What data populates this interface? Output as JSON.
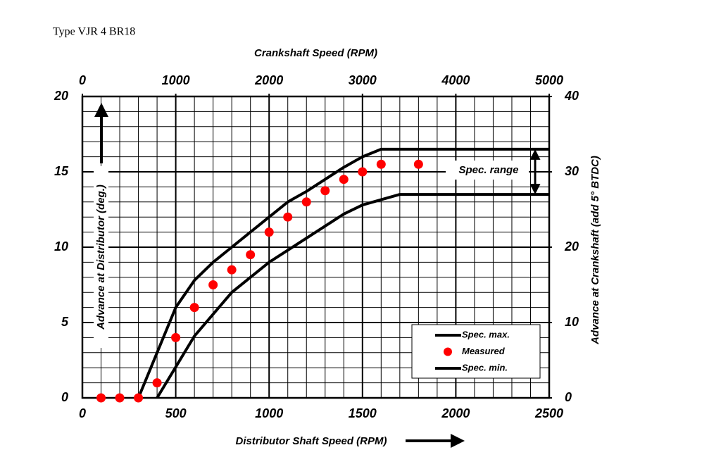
{
  "chart_data": {
    "type": "line",
    "title": "Type VJR 4 BR18",
    "x_label": "Distributor Shaft Speed (RPM)",
    "x2_label": "Crankshaft Speed (RPM)",
    "y_label": "Advance at Distributor (deg.)",
    "y2_label": "Advance at Crankshaft (add 5° BTDC)",
    "annotation": "Spec. range",
    "xlim": [
      0,
      2500
    ],
    "xticks": [
      0,
      500,
      1000,
      1500,
      2000,
      2500
    ],
    "x2lim": [
      0,
      5000
    ],
    "x2ticks": [
      0,
      1000,
      2000,
      3000,
      4000,
      5000
    ],
    "ylim": [
      0,
      20
    ],
    "yticks": [
      0,
      5,
      10,
      15,
      20
    ],
    "y2lim": [
      0,
      40
    ],
    "y2ticks": [
      0,
      10,
      20,
      30,
      40
    ],
    "grid": true,
    "legend": "lower right",
    "series": [
      {
        "name": "Spec. max.",
        "color": "#000000",
        "style": "line",
        "x": [
          300,
          500,
          600,
          700,
          800,
          900,
          1000,
          1100,
          1200,
          1300,
          1400,
          1500,
          1600,
          2500
        ],
        "values": [
          0,
          6,
          7.8,
          9,
          10,
          11,
          12,
          13,
          13.7,
          14.5,
          15.3,
          16,
          16.5,
          16.5
        ]
      },
      {
        "name": "Measured",
        "color": "#ff0000",
        "style": "markers",
        "x": [
          100,
          200,
          300,
          400,
          500,
          600,
          700,
          800,
          900,
          1000,
          1100,
          1200,
          1300,
          1400,
          1500,
          1600,
          1800
        ],
        "values": [
          0,
          0,
          0,
          1,
          4,
          6,
          7.5,
          8.5,
          9.5,
          11,
          12,
          13,
          13.75,
          14.5,
          15,
          15.5,
          15.5
        ]
      },
      {
        "name": "Spec. min.",
        "color": "#000000",
        "style": "line",
        "x": [
          400,
          600,
          800,
          1000,
          1200,
          1400,
          1500,
          1700,
          2500
        ],
        "values": [
          0,
          4.1,
          7,
          9,
          10.6,
          12.2,
          12.8,
          13.5,
          13.5
        ]
      }
    ]
  }
}
